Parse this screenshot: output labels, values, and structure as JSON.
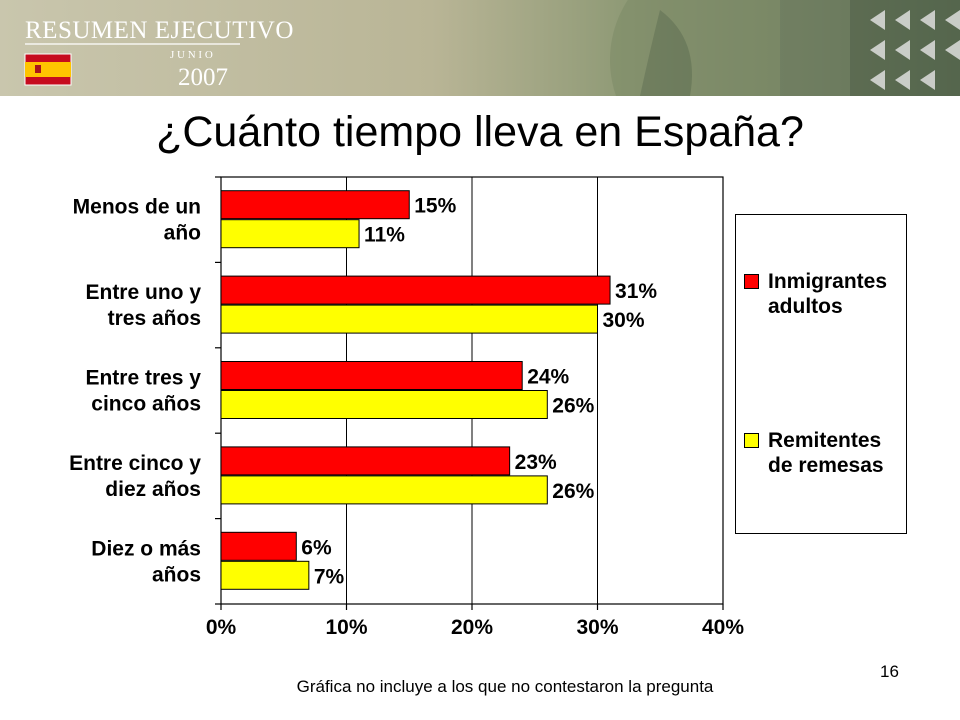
{
  "banner": {
    "title": "RESUMEN EJECUTIVO",
    "month": "J U N I O",
    "year": "2007",
    "flag_icon": "spain-flag-icon"
  },
  "slide_title": "¿Cuánto tiempo lleva en España?",
  "chart_data": {
    "type": "bar",
    "orientation": "horizontal",
    "categories": [
      [
        "Menos de un",
        "año"
      ],
      [
        "Entre uno y",
        "tres años"
      ],
      [
        "Entre tres y",
        "cinco años"
      ],
      [
        "Entre cinco y",
        "diez años"
      ],
      [
        "Diez o más",
        "años"
      ]
    ],
    "series": [
      {
        "name": "Inmigrantes adultos",
        "color": "#ff0000",
        "values": [
          15,
          31,
          24,
          23,
          6
        ],
        "labels": [
          "15%",
          "31%",
          "24%",
          "23%",
          "6%"
        ]
      },
      {
        "name": "Remitentes de remesas",
        "color": "#ffff00",
        "values": [
          11,
          30,
          26,
          26,
          7
        ],
        "labels": [
          "11%",
          "30%",
          "26%",
          "26%",
          "7%"
        ]
      }
    ],
    "xlim": [
      0,
      40
    ],
    "xticks": [
      0,
      10,
      20,
      30,
      40
    ],
    "xtick_labels": [
      "0%",
      "10%",
      "20%",
      "30%",
      "40%"
    ],
    "grid": "vertical",
    "legend_position": "right",
    "title": "",
    "xlabel": "",
    "ylabel": ""
  },
  "legend": {
    "items": [
      {
        "lines": [
          "Inmigrantes",
          "adultos"
        ],
        "color": "#ff0000"
      },
      {
        "lines": [
          "Remitentes",
          "de remesas"
        ],
        "color": "#ffff00"
      }
    ]
  },
  "footnote": "Gráfica no incluye a los que no contestaron la pregunta",
  "page_number": "16"
}
